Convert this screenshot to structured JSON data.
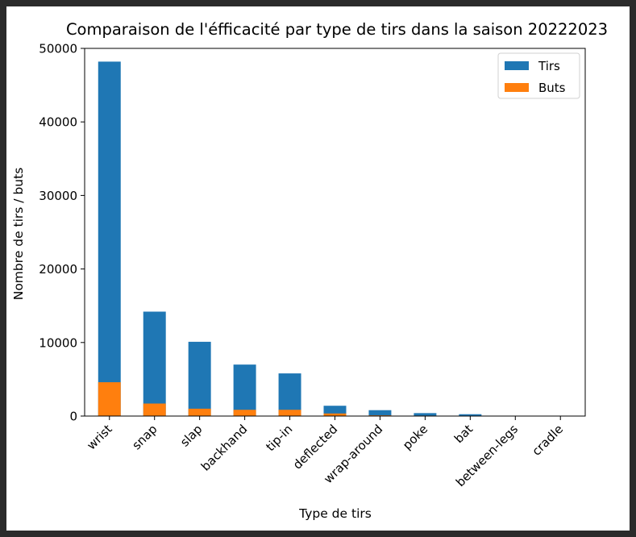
{
  "chart_data": {
    "type": "bar",
    "stacked": "overlay",
    "title": "Comparaison de l'éfficacité par type de tirs dans la saison 20222023",
    "xlabel": "Type de tirs",
    "ylabel": "Nombre de tirs / buts",
    "ylim": [
      0,
      50000
    ],
    "yticks": [
      0,
      10000,
      20000,
      30000,
      40000,
      50000
    ],
    "categories": [
      "wrist",
      "snap",
      "slap",
      "backhand",
      "tip-in",
      "deflected",
      "wrap-around",
      "poke",
      "bat",
      "between-legs",
      "cradle"
    ],
    "series": [
      {
        "name": "Tirs",
        "color": "#1f77b4",
        "values": [
          48200,
          14200,
          10100,
          7000,
          5800,
          1400,
          800,
          400,
          250,
          40,
          20
        ]
      },
      {
        "name": "Buts",
        "color": "#ff7f0e",
        "values": [
          4600,
          1700,
          1000,
          850,
          850,
          350,
          100,
          60,
          40,
          5,
          2
        ]
      }
    ],
    "legend": "top-right",
    "grid": false
  }
}
